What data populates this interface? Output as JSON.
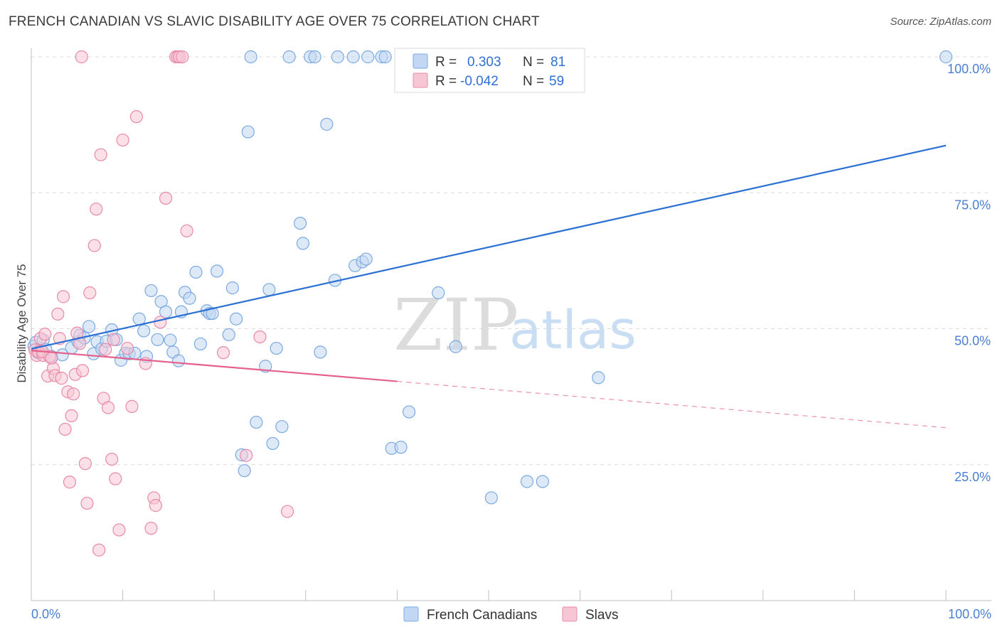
{
  "chart_data": {
    "type": "scatter",
    "title": "FRENCH CANADIAN VS SLAVIC DISABILITY AGE OVER 75 CORRELATION CHART",
    "source": "Source: ZipAtlas.com",
    "xlabel": "",
    "ylabel": "Disability Age Over 75",
    "xlim": [
      0,
      100
    ],
    "ylim": [
      0,
      104
    ],
    "x_tick_labels": [
      "0.0%",
      "100.0%"
    ],
    "y_ticks": [
      25,
      50,
      75,
      100
    ],
    "y_tick_labels": [
      "25.0%",
      "50.0%",
      "75.0%",
      "100.0%"
    ],
    "watermark": {
      "zip": "ZIP",
      "atlas": "atlas"
    },
    "legend": {
      "rows": [
        {
          "r_label": "R =",
          "r_value": "0.303",
          "n_label": "N =",
          "n_value": "81"
        },
        {
          "r_label": "R =",
          "r_value": "-0.042",
          "n_label": "N =",
          "n_value": "59"
        }
      ]
    },
    "series": [
      {
        "name": "French Canadians",
        "color": "#7aaae2",
        "fill": "#c2d7f3",
        "trend_color": "#2a6fd4",
        "trend": {
          "x0": 0,
          "y0": 46.3,
          "x1": 100,
          "y1": 83.7,
          "solid_to": 100
        },
        "points": [
          [
            0.3,
            46.8
          ],
          [
            0.5,
            47.5
          ],
          [
            0.7,
            45.6
          ],
          [
            1.0,
            46.3
          ],
          [
            1.3,
            47.9
          ],
          [
            1.6,
            46.2
          ],
          [
            2.2,
            44.9
          ],
          [
            3.4,
            45.2
          ],
          [
            4.4,
            46.5
          ],
          [
            5.1,
            47.6
          ],
          [
            5.3,
            48.8
          ],
          [
            5.8,
            48.3
          ],
          [
            6.3,
            50.4
          ],
          [
            6.8,
            45.4
          ],
          [
            7.2,
            47.6
          ],
          [
            7.7,
            46.3
          ],
          [
            8.2,
            47.7
          ],
          [
            8.8,
            49.8
          ],
          [
            9.3,
            48.0
          ],
          [
            9.8,
            44.2
          ],
          [
            10.3,
            45.5
          ],
          [
            10.7,
            45.4
          ],
          [
            11.3,
            45.5
          ],
          [
            11.8,
            51.8
          ],
          [
            12.3,
            49.6
          ],
          [
            12.6,
            44.9
          ],
          [
            13.1,
            57.0
          ],
          [
            13.8,
            48.0
          ],
          [
            14.2,
            55.0
          ],
          [
            14.7,
            53.1
          ],
          [
            15.2,
            47.9
          ],
          [
            15.5,
            45.7
          ],
          [
            16.1,
            44.1
          ],
          [
            16.4,
            53.1
          ],
          [
            16.8,
            56.7
          ],
          [
            17.3,
            55.6
          ],
          [
            18.0,
            60.4
          ],
          [
            18.5,
            47.2
          ],
          [
            19.2,
            53.3
          ],
          [
            19.5,
            52.8
          ],
          [
            19.8,
            52.8
          ],
          [
            20.3,
            60.6
          ],
          [
            21.6,
            48.9
          ],
          [
            22.0,
            57.5
          ],
          [
            22.4,
            51.8
          ],
          [
            23.0,
            26.8
          ],
          [
            23.3,
            23.9
          ],
          [
            23.7,
            86.2
          ],
          [
            24.0,
            100.0
          ],
          [
            24.6,
            32.8
          ],
          [
            25.6,
            43.1
          ],
          [
            26.0,
            57.2
          ],
          [
            26.4,
            28.9
          ],
          [
            26.8,
            46.4
          ],
          [
            27.4,
            32.0
          ],
          [
            28.2,
            100.0
          ],
          [
            29.4,
            69.4
          ],
          [
            29.7,
            65.7
          ],
          [
            30.5,
            100.0
          ],
          [
            31.0,
            100.0
          ],
          [
            31.6,
            45.7
          ],
          [
            32.3,
            87.6
          ],
          [
            33.2,
            58.9
          ],
          [
            33.5,
            100.0
          ],
          [
            35.2,
            100.0
          ],
          [
            35.4,
            61.6
          ],
          [
            36.2,
            62.3
          ],
          [
            36.6,
            62.8
          ],
          [
            36.8,
            100.0
          ],
          [
            38.3,
            100.0
          ],
          [
            38.7,
            100.0
          ],
          [
            39.4,
            28.0
          ],
          [
            40.4,
            28.2
          ],
          [
            41.3,
            34.7
          ],
          [
            44.5,
            56.6
          ],
          [
            46.4,
            46.7
          ],
          [
            50.3,
            18.9
          ],
          [
            54.2,
            21.9
          ],
          [
            55.9,
            21.9
          ],
          [
            62.0,
            41.0
          ],
          [
            100.0,
            100.0
          ]
        ]
      },
      {
        "name": "Slavs",
        "color": "#e88aa8",
        "fill": "#f7c6d5",
        "trend_color": "#e5608b",
        "trend": {
          "x0": 0,
          "y0": 46.0,
          "x1": 100,
          "y1": 31.8,
          "solid_to": 40
        },
        "points": [
          [
            0.4,
            46.1
          ],
          [
            0.6,
            45.1
          ],
          [
            0.8,
            45.7
          ],
          [
            1.0,
            48.2
          ],
          [
            1.3,
            45.1
          ],
          [
            1.5,
            49.0
          ],
          [
            1.8,
            41.3
          ],
          [
            2.0,
            44.9
          ],
          [
            2.4,
            42.7
          ],
          [
            2.6,
            41.4
          ],
          [
            2.9,
            52.7
          ],
          [
            3.1,
            48.2
          ],
          [
            3.3,
            40.9
          ],
          [
            3.5,
            55.9
          ],
          [
            3.7,
            31.5
          ],
          [
            4.0,
            38.4
          ],
          [
            4.2,
            21.8
          ],
          [
            4.4,
            34.0
          ],
          [
            4.8,
            41.6
          ],
          [
            5.0,
            49.2
          ],
          [
            5.3,
            47.3
          ],
          [
            5.6,
            42.3
          ],
          [
            5.9,
            25.2
          ],
          [
            6.1,
            17.9
          ],
          [
            6.4,
            56.6
          ],
          [
            6.9,
            65.3
          ],
          [
            7.1,
            72.0
          ],
          [
            7.4,
            9.3
          ],
          [
            7.9,
            37.2
          ],
          [
            8.1,
            46.2
          ],
          [
            8.4,
            35.5
          ],
          [
            8.8,
            26.0
          ],
          [
            9.2,
            22.4
          ],
          [
            9.6,
            13.0
          ],
          [
            10.0,
            84.7
          ],
          [
            10.5,
            46.4
          ],
          [
            11.0,
            35.7
          ],
          [
            11.5,
            89.0
          ],
          [
            12.5,
            43.6
          ],
          [
            13.1,
            13.3
          ],
          [
            13.4,
            18.9
          ],
          [
            13.6,
            17.5
          ],
          [
            14.1,
            51.2
          ],
          [
            14.7,
            74.0
          ],
          [
            15.8,
            100.0
          ],
          [
            16.0,
            100.0
          ],
          [
            16.2,
            100.0
          ],
          [
            16.5,
            100.0
          ],
          [
            17.0,
            68.0
          ],
          [
            21.0,
            45.6
          ],
          [
            23.5,
            26.7
          ],
          [
            25.0,
            48.5
          ],
          [
            28.0,
            16.4
          ],
          [
            7.6,
            82.0
          ],
          [
            1.2,
            45.8
          ],
          [
            2.2,
            44.6
          ],
          [
            4.6,
            38.0
          ],
          [
            9.0,
            48.0
          ],
          [
            5.5,
            100.0
          ]
        ]
      }
    ]
  }
}
